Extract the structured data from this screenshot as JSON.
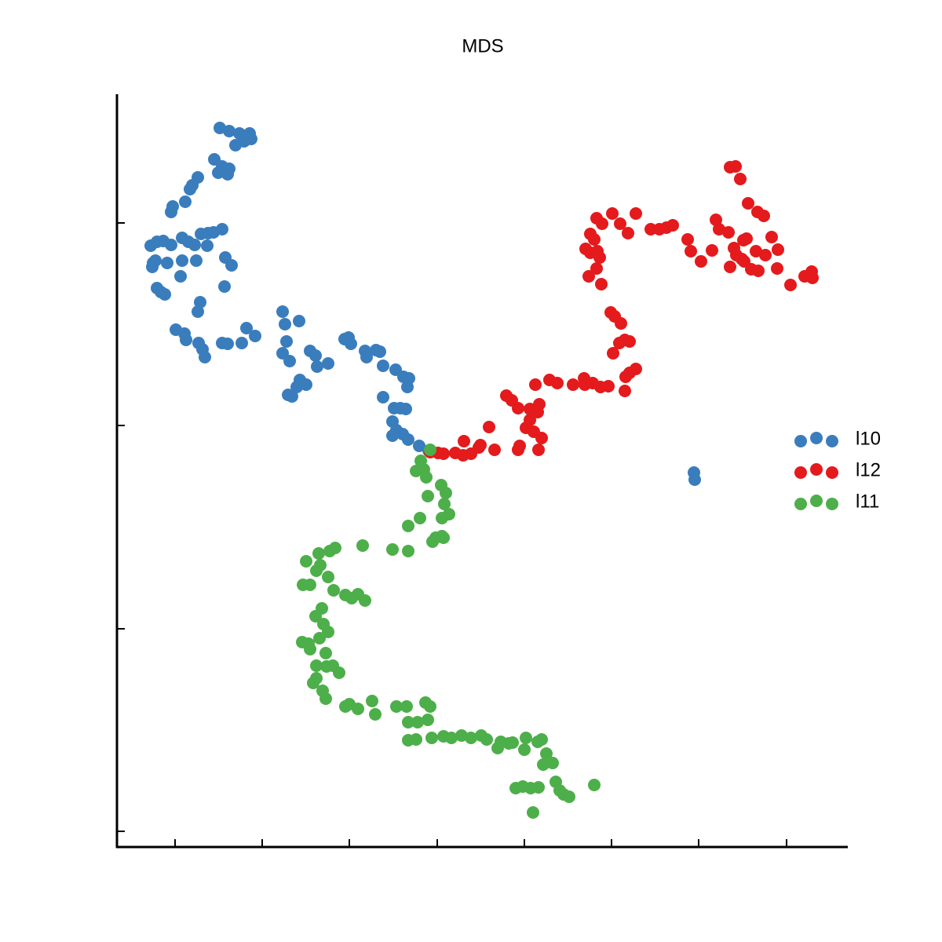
{
  "chart_data": {
    "type": "scatter",
    "title": "MDS",
    "xlim": [
      -74,
      857
    ],
    "xticks": [
      0,
      111,
      222,
      334,
      445,
      556,
      667,
      779
    ],
    "ylim": [
      -20,
      939
    ],
    "yticks": [
      0,
      258,
      517,
      775
    ],
    "legend": "right",
    "series": [
      {
        "name": "l10",
        "color": "#3a7dbd",
        "x": [
          57,
          69,
          82,
          95,
          88,
          97,
          77,
          50,
          60,
          69,
          67,
          55,
          29,
          22,
          19,
          13,
          -3,
          -5,
          -31,
          -23,
          -15,
          -5,
          9,
          17,
          33,
          42,
          49,
          60,
          25,
          41,
          -28,
          -25,
          -10,
          9,
          27,
          64,
          72,
          -29,
          7,
          -23,
          -18,
          -13,
          63,
          32,
          29,
          1,
          12,
          14,
          30,
          35,
          38,
          60,
          67,
          91,
          102,
          85,
          137,
          140,
          158,
          142,
          137,
          146,
          172,
          179,
          181,
          195,
          159,
          167,
          155,
          144,
          149,
          216,
          221,
          224,
          242,
          244,
          256,
          261,
          265,
          281,
          291,
          296,
          298,
          265,
          279,
          287,
          294,
          277,
          282,
          277,
          290,
          297,
          311,
          323,
          661,
          662
        ],
        "values": [
          896,
          892,
          889,
          889,
          879,
          882,
          874,
          856,
          847,
          844,
          837,
          839,
          833,
          823,
          818,
          802,
          796,
          789,
          746,
          751,
          752,
          747,
          756,
          751,
          761,
          762,
          763,
          767,
          747,
          746,
          724,
          727,
          724,
          727,
          727,
          731,
          721,
          719,
          707,
          692,
          687,
          684,
          694,
          674,
          662,
          639,
          634,
          626,
          622,
          614,
          604,
          622,
          621,
          641,
          631,
          622,
          662,
          646,
          650,
          624,
          609,
          599,
          612,
          606,
          592,
          596,
          575,
          569,
          566,
          556,
          554,
          627,
          629,
          621,
          612,
          604,
          613,
          611,
          593,
          588,
          579,
          566,
          577,
          553,
          539,
          539,
          538,
          522,
          511,
          504,
          506,
          499,
          491,
          485,
          457,
          448
        ]
      },
      {
        "name": "l12",
        "color": "#e41a1c",
        "x": [
          707,
          714,
          720,
          730,
          742,
          750,
          689,
          693,
          705,
          728,
          724,
          760,
          712,
          715,
          722,
          740,
          752,
          768,
          707,
          725,
          734,
          743,
          767,
          784,
          802,
          811,
          812,
          606,
          617,
          626,
          634,
          653,
          657,
          670,
          684,
          587,
          557,
          577,
          567,
          537,
          544,
          529,
          534,
          523,
          529,
          538,
          541,
          537,
          527,
          543,
          555,
          560,
          568,
          573,
          579,
          566,
          558,
          587,
          579,
          574,
          573,
          552,
          542,
          532,
          521,
          522,
          507,
          487,
          477,
          459,
          464,
          462,
          452,
          452,
          447,
          457,
          467,
          463,
          439,
          437,
          422,
          429,
          437,
          400,
          407,
          387,
          368,
          377,
          367,
          357,
          342,
          335,
          325,
          389
        ],
        "values": [
          846,
          847,
          831,
          800,
          789,
          784,
          779,
          767,
          763,
          755,
          753,
          757,
          743,
          734,
          729,
          739,
          734,
          741,
          719,
          726,
          716,
          714,
          717,
          696,
          707,
          713,
          705,
          767,
          767,
          769,
          772,
          754,
          739,
          726,
          740,
          787,
          787,
          762,
          774,
          781,
          774,
          761,
          754,
          742,
          737,
          739,
          731,
          717,
          707,
          697,
          661,
          656,
          647,
          626,
          624,
          622,
          609,
          589,
          584,
          579,
          561,
          567,
          566,
          571,
          577,
          569,
          569,
          571,
          575,
          569,
          544,
          534,
          538,
          524,
          514,
          509,
          501,
          486,
          491,
          486,
          555,
          549,
          539,
          515,
          486,
          489,
          497,
          481,
          479,
          482,
          481,
          482,
          483,
          492
        ]
      },
      {
        "name": "l11",
        "color": "#4daf4a",
        "x": [
          325,
          313,
          317,
          307,
          320,
          339,
          345,
          322,
          343,
          349,
          340,
          312,
          297,
          340,
          328,
          332,
          342,
          239,
          277,
          297,
          204,
          197,
          183,
          167,
          185,
          180,
          195,
          163,
          172,
          202,
          217,
          233,
          242,
          225,
          187,
          179,
          189,
          195,
          184,
          162,
          170,
          172,
          192,
          180,
          193,
          201,
          209,
          180,
          176,
          188,
          192,
          217,
          222,
          233,
          251,
          255,
          282,
          295,
          319,
          325,
          297,
          309,
          322,
          297,
          307,
          327,
          342,
          352,
          365,
          377,
          390,
          397,
          415,
          411,
          425,
          430,
          445,
          447,
          462,
          467,
          473,
          481,
          469,
          463,
          443,
          434,
          453,
          485,
          490,
          495,
          502,
          534,
          456
        ],
        "values": [
          486,
          472,
          461,
          459,
          451,
          441,
          431,
          427,
          417,
          404,
          399,
          399,
          389,
          376,
          369,
          374,
          374,
          364,
          359,
          357,
          361,
          357,
          354,
          344,
          339,
          332,
          324,
          314,
          314,
          307,
          301,
          302,
          294,
          297,
          284,
          274,
          264,
          254,
          246,
          241,
          239,
          232,
          227,
          211,
          210,
          211,
          202,
          195,
          189,
          179,
          169,
          159,
          162,
          156,
          166,
          149,
          159,
          159,
          164,
          159,
          139,
          139,
          142,
          116,
          117,
          119,
          121,
          119,
          122,
          119,
          122,
          117,
          114,
          106,
          112,
          113,
          104,
          119,
          114,
          117,
          99,
          87,
          85,
          56,
          57,
          55,
          55,
          63,
          52,
          47,
          44,
          59,
          24
        ]
      }
    ]
  }
}
